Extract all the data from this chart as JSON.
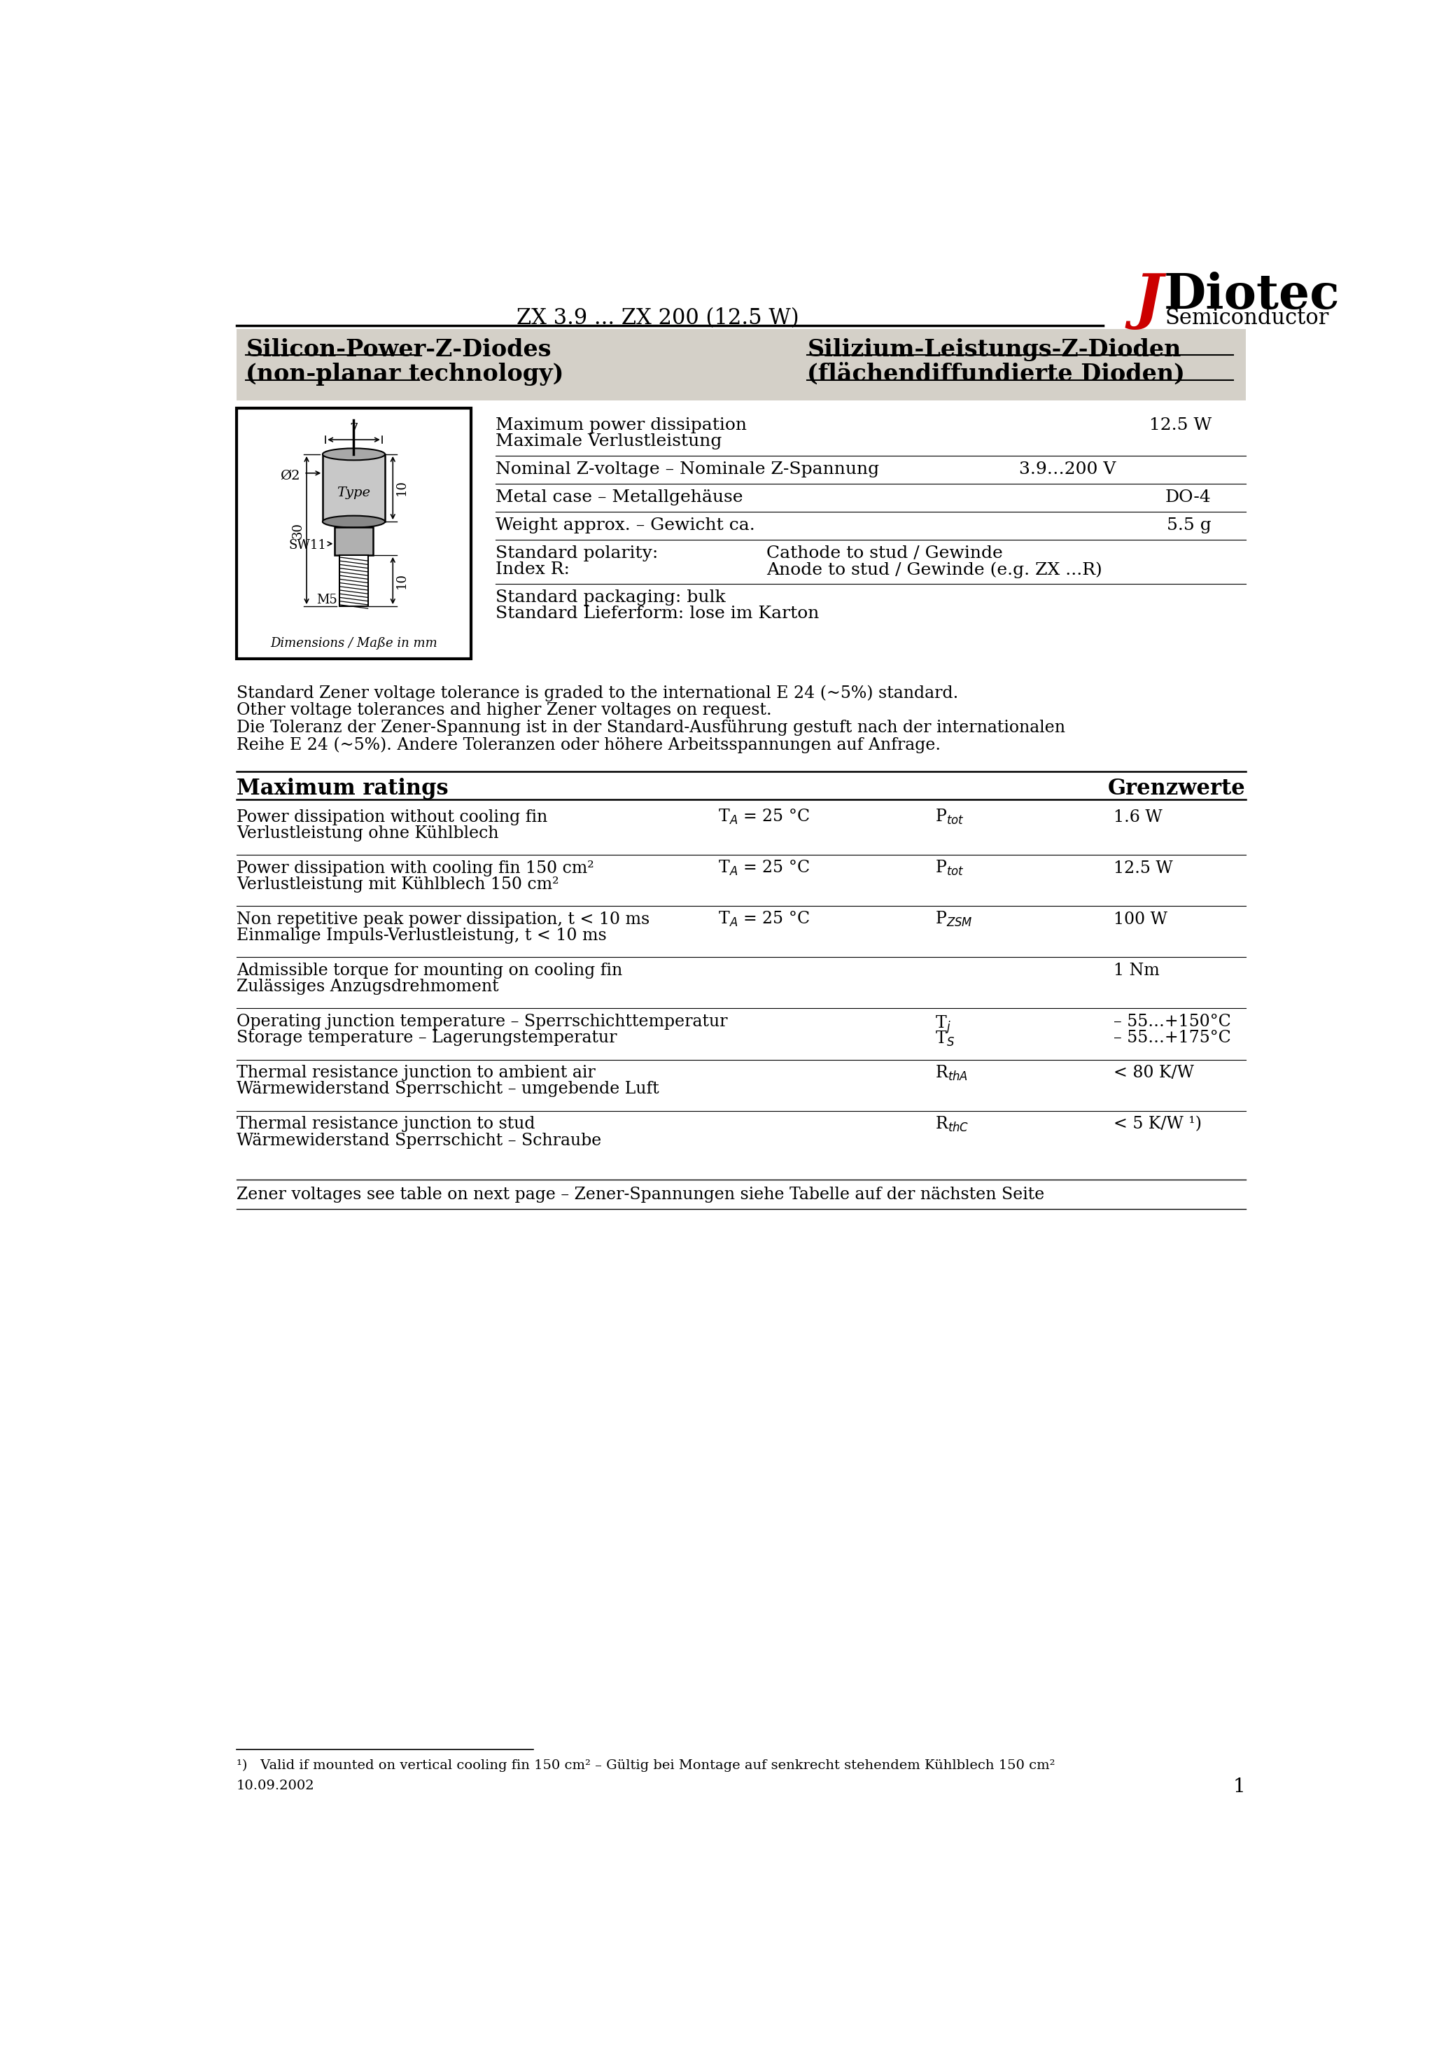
{
  "title_center": "ZX 3.9 ... ZX 200 (12.5 W)",
  "logo_text1": "Diotec",
  "logo_text2": "Semiconductor",
  "subtitle_left1": "Silicon-Power-Z-Diodes",
  "subtitle_left2": "(non-planar technology)",
  "subtitle_right1": "Silizium-Leistungs-Z-Dioden",
  "subtitle_right2": "(flächendiffundierte Dioden)",
  "tolerance_text": [
    "Standard Zener voltage tolerance is graded to the international E 24 (~5%) standard.",
    "Other voltage tolerances and higher Zener voltages on request.",
    "Die Toleranz der Zener-Spannung ist in der Standard-Ausführung gestuft nach der internationalen",
    "Reihe E 24 (~5%). Andere Toleranzen oder höhere Arbeitsspannungen auf Anfrage."
  ],
  "max_ratings_left": "Maximum ratings",
  "max_ratings_right": "Grenzwerte",
  "zener_note": "Zener voltages see table on next page – Zener-Spannungen siehe Tabelle auf der nächsten Seite",
  "footnote": "¹)   Valid if mounted on vertical cooling fin 150 cm² – Gültig bei Montage auf senkrecht stehendem Kühlblech 150 cm²",
  "date": "10.09.2002",
  "page": "1",
  "bg_color": "#ffffff",
  "header_bg": "#d4d0c8",
  "red": "#cc0000"
}
